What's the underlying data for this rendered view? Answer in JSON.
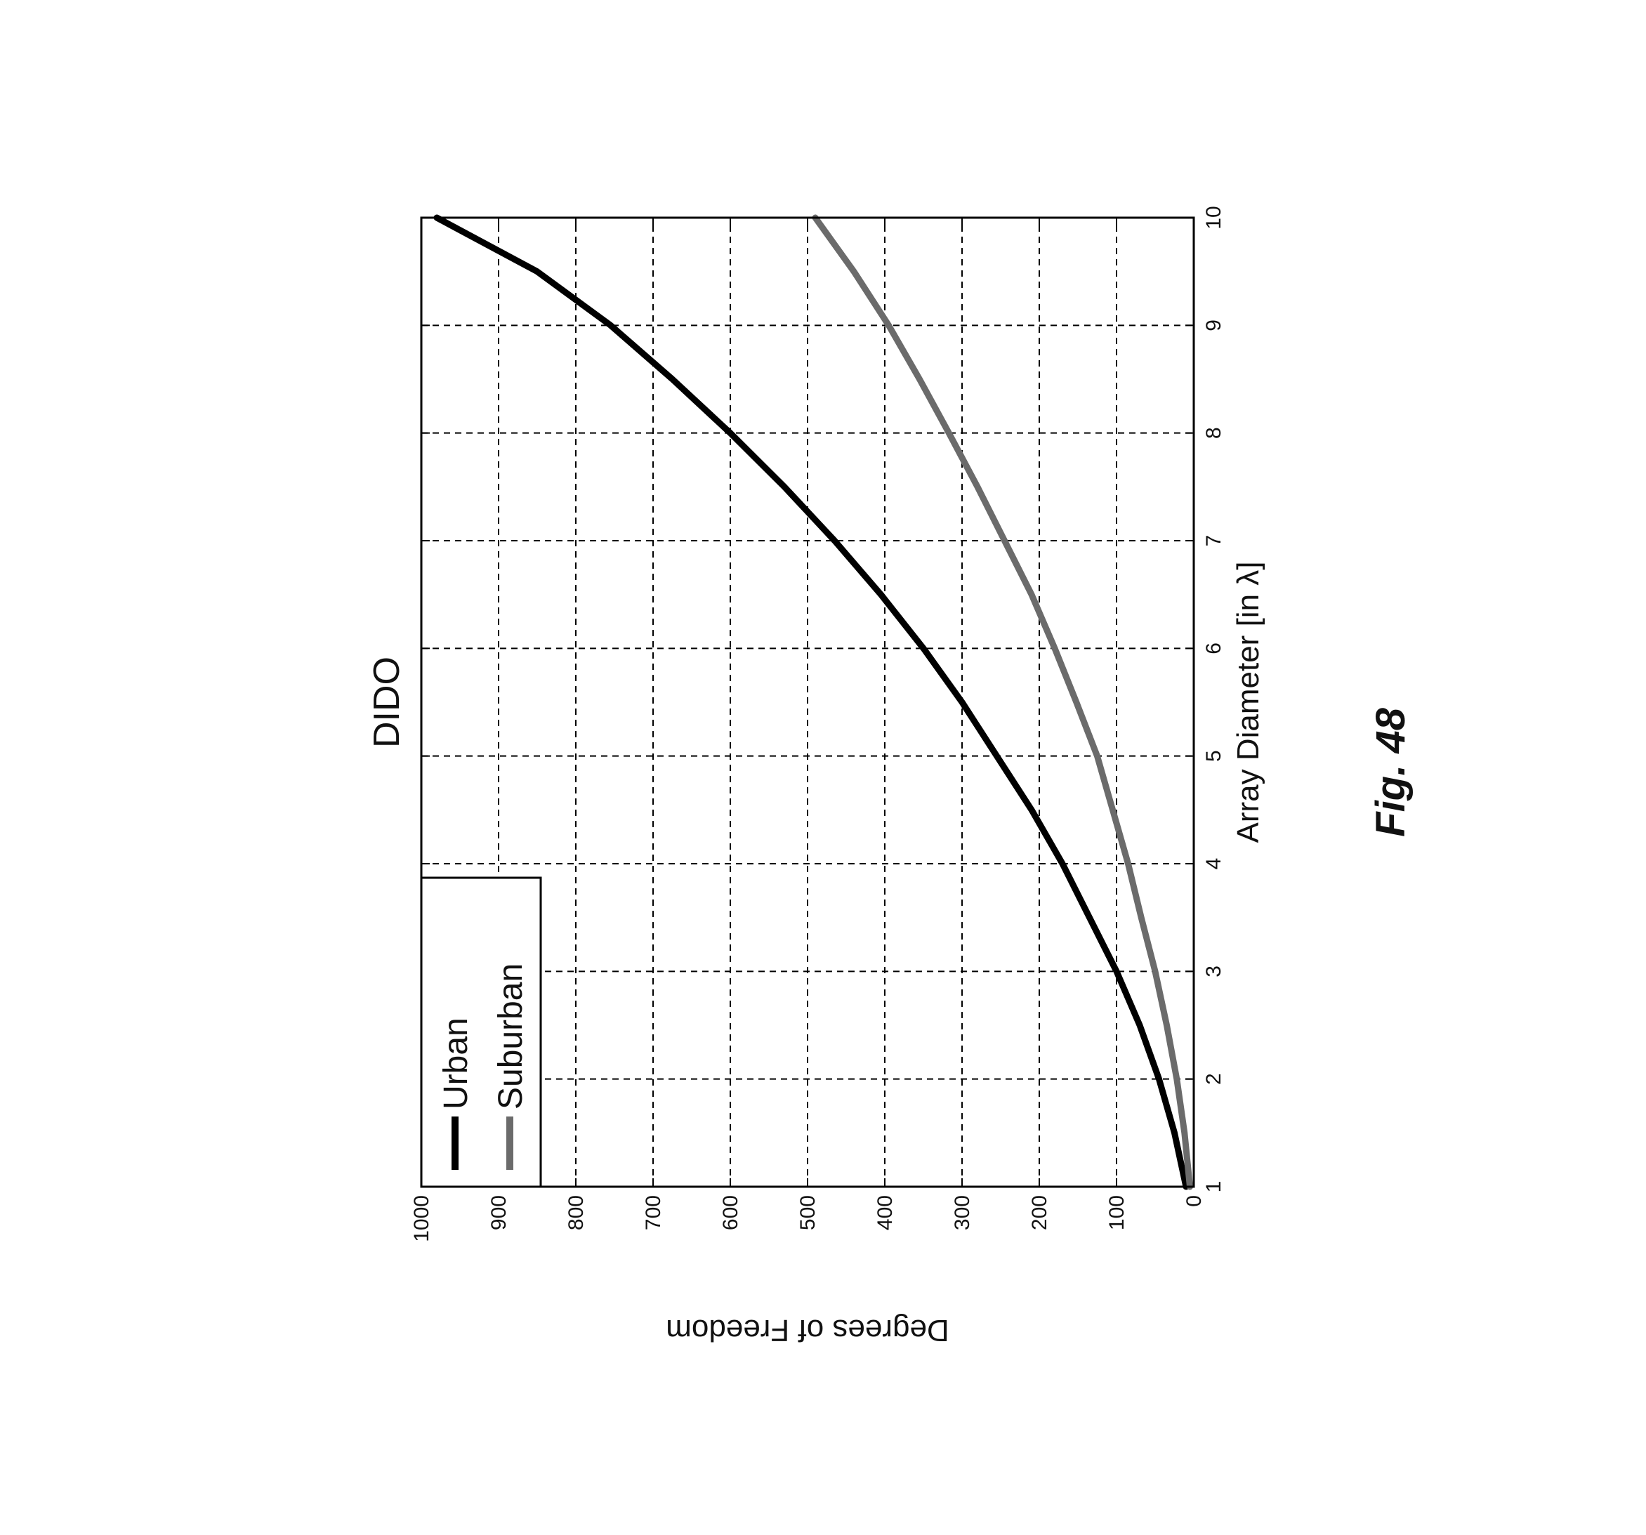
{
  "caption": "Fig. 48",
  "chart_data": {
    "type": "line",
    "title": "DIDO",
    "xlabel": "Array Diameter [in λ]",
    "ylabel": "Degrees of Freedom",
    "xlim": [
      1,
      10
    ],
    "ylim": [
      0,
      1000
    ],
    "xticks": [
      1,
      2,
      3,
      4,
      5,
      6,
      7,
      8,
      9,
      10
    ],
    "yticks": [
      0,
      100,
      200,
      300,
      400,
      500,
      600,
      700,
      800,
      900,
      1000
    ],
    "grid": true,
    "legend_position": "top-left",
    "orientation": "rotated 90 degrees counter-clockwise on the page",
    "x": [
      1,
      1.5,
      2,
      2.5,
      3,
      3.5,
      4,
      4.5,
      5,
      5.5,
      6,
      6.5,
      7,
      7.5,
      8,
      8.5,
      9,
      9.5,
      10
    ],
    "series": [
      {
        "name": "Urban",
        "color": "#000000",
        "values": [
          10,
          25,
          45,
          70,
          100,
          135,
          170,
          210,
          255,
          300,
          350,
          405,
          465,
          530,
          600,
          675,
          755,
          850,
          980
        ]
      },
      {
        "name": "Suburban",
        "color": "#6b6b6b",
        "values": [
          5,
          12,
          22,
          35,
          50,
          68,
          85,
          105,
          125,
          152,
          180,
          210,
          245,
          280,
          317,
          355,
          395,
          440,
          490
        ]
      }
    ]
  }
}
